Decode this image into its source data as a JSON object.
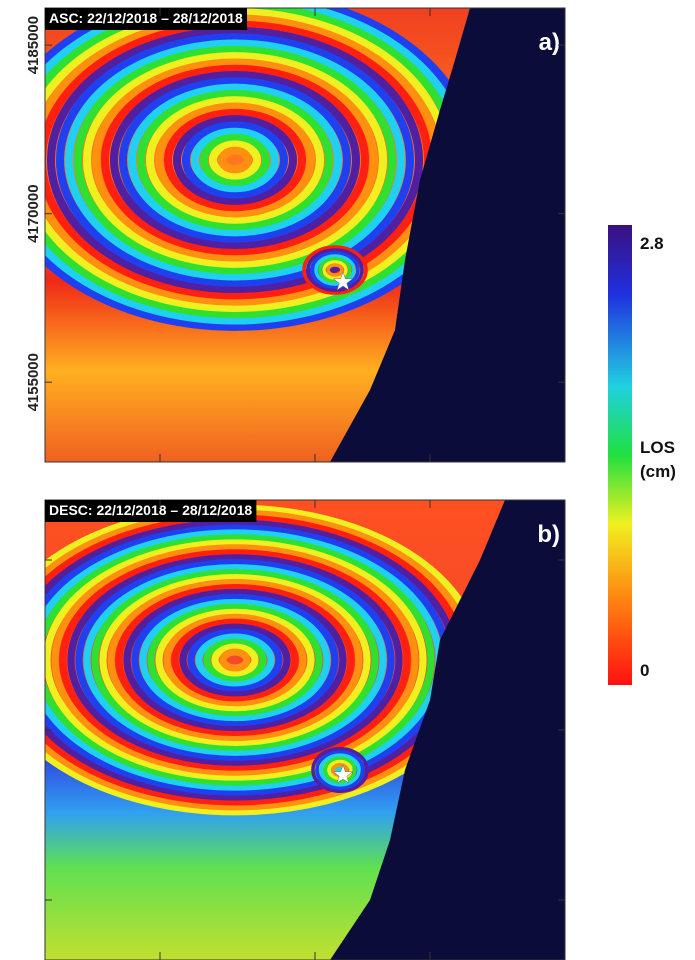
{
  "panels": [
    {
      "title": "ASC: 22/12/2018 – 28/12/2018",
      "label": "a)",
      "yticks": [
        4185000,
        4170000,
        4155000
      ],
      "ylim": [
        4147900,
        4188300
      ]
    },
    {
      "title": "DESC: 22/12/2018 – 28/12/2018",
      "label": "b)"
    }
  ],
  "colorbar": {
    "lim": [
      0,
      2.8
    ],
    "ticks": [
      2.8,
      0
    ],
    "label": [
      "LOS",
      "(cm)"
    ]
  }
}
